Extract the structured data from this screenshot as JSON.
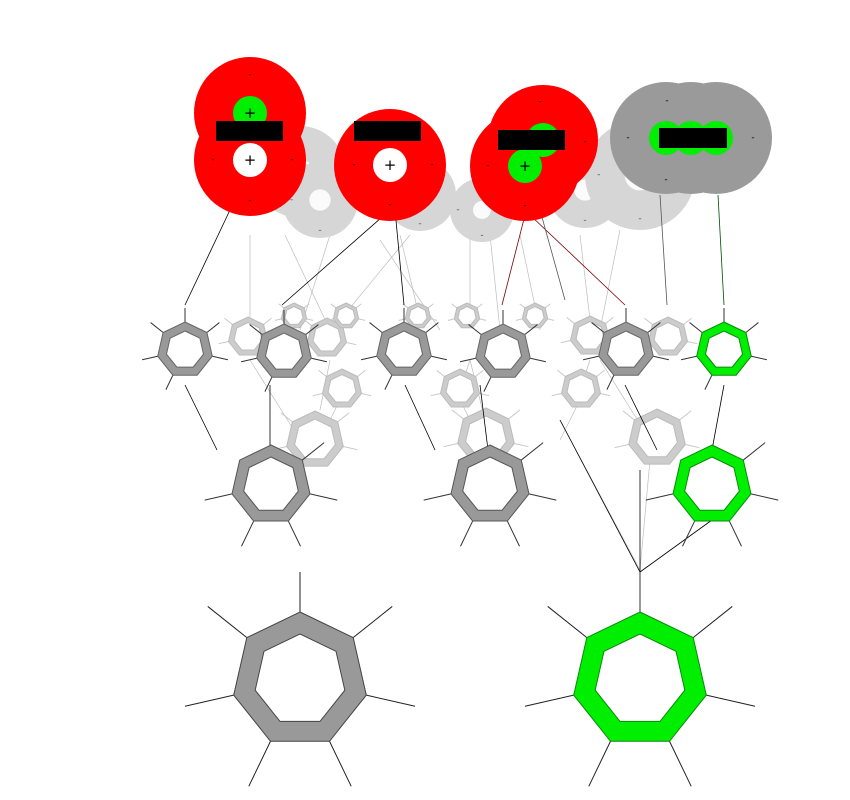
{
  "diagram": {
    "signs": {
      "plus": "+",
      "minus": "-"
    },
    "colors": {
      "negative_charge": "#ff0000",
      "positive_charge": "#00ee00",
      "neutral_charge": "#9a9a9a",
      "ghost_charge": "#d6d6d6",
      "highlight_ring": "#00ee00",
      "standard_ring": "#999999",
      "ghost_ring": "#cccccc",
      "redaction_bar": "#000000"
    },
    "top_charge_clusters": [
      {
        "state": "negative",
        "redacted": true
      },
      {
        "state": "negative",
        "redacted": true
      },
      {
        "state": "negative",
        "redacted": true
      },
      {
        "state": "neutral",
        "redacted": true
      }
    ],
    "layers": [
      {
        "level": 1,
        "highlighted_rings": 1,
        "standard_rings": 5
      },
      {
        "level": 2,
        "highlighted_rings": 1,
        "standard_rings": 2
      },
      {
        "level": 3,
        "highlighted_rings": 1,
        "standard_rings": 1
      }
    ]
  }
}
